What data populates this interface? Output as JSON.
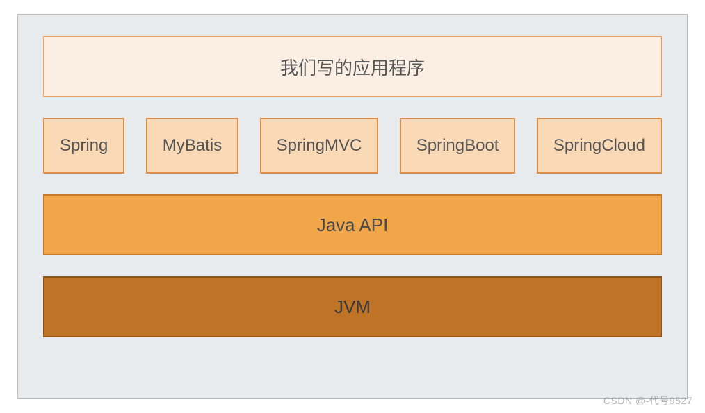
{
  "colors": {
    "page_bg": "#ffffff",
    "container_bg": "#e7ebee",
    "container_border": "#b9b9b9",
    "top_bg": "#fbefe4",
    "top_border": "#e3a06a",
    "top_text": "#555555",
    "fw_bg": "#fad9b6",
    "fw_border": "#dc8f4a",
    "fw_text": "#555555",
    "api_bg": "#f1a649",
    "api_border": "#c77a2e",
    "api_text": "#4a4a4a",
    "jvm_bg": "#bf7326",
    "jvm_border": "#8f5518",
    "jvm_text": "#3a3a3a"
  },
  "layers": {
    "app": {
      "label": "我们写的应用程序"
    },
    "frameworks": [
      {
        "label": "Spring"
      },
      {
        "label": "MyBatis"
      },
      {
        "label": "SpringMVC"
      },
      {
        "label": "SpringBoot"
      },
      {
        "label": "SpringCloud"
      }
    ],
    "api": {
      "label": "Java API"
    },
    "jvm": {
      "label": "JVM"
    }
  },
  "watermark": "CSDN @-代号9527"
}
